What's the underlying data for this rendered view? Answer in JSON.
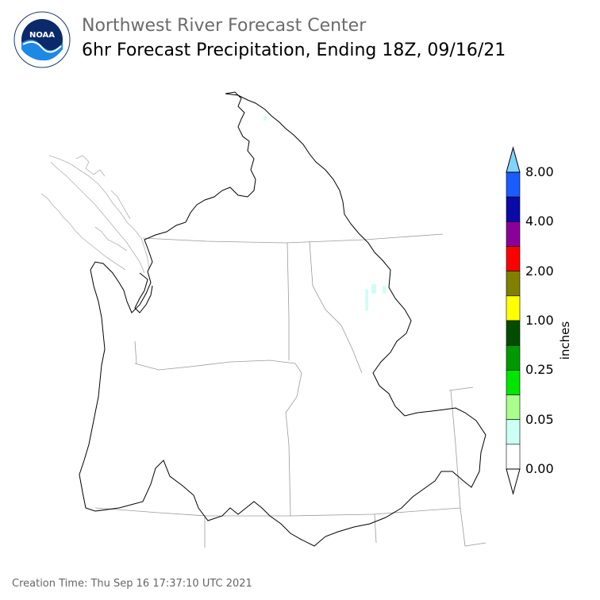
{
  "header": {
    "org_name": "Northwest River Forecast Center",
    "title": "6hr Forecast Precipitation, Ending 18Z, 09/16/21"
  },
  "logo": {
    "text": "NOAA",
    "ring_text": "NATIONAL OCEANIC AND ATMOSPHERIC ADMINISTRATION · U.S. DEPARTMENT OF COMMERCE"
  },
  "legend": {
    "units": "inches",
    "tick_labels": [
      "8.00",
      "4.00",
      "2.00",
      "1.00",
      "0.25",
      "0.05",
      "0.00"
    ],
    "colors": [
      "#1a5cff",
      "#0a0aa8",
      "#8b0099",
      "#ff0000",
      "#808000",
      "#ffff00",
      "#004d00",
      "#009900",
      "#00e600",
      "#a8ff8c",
      "#ccfff5",
      "#ffffff"
    ],
    "over_color": "#80d4ff",
    "under_color": "#ffffff"
  },
  "footer": {
    "creation_time": "Creation Time: Thu Sep 16 17:37:10 UTC 2021"
  }
}
